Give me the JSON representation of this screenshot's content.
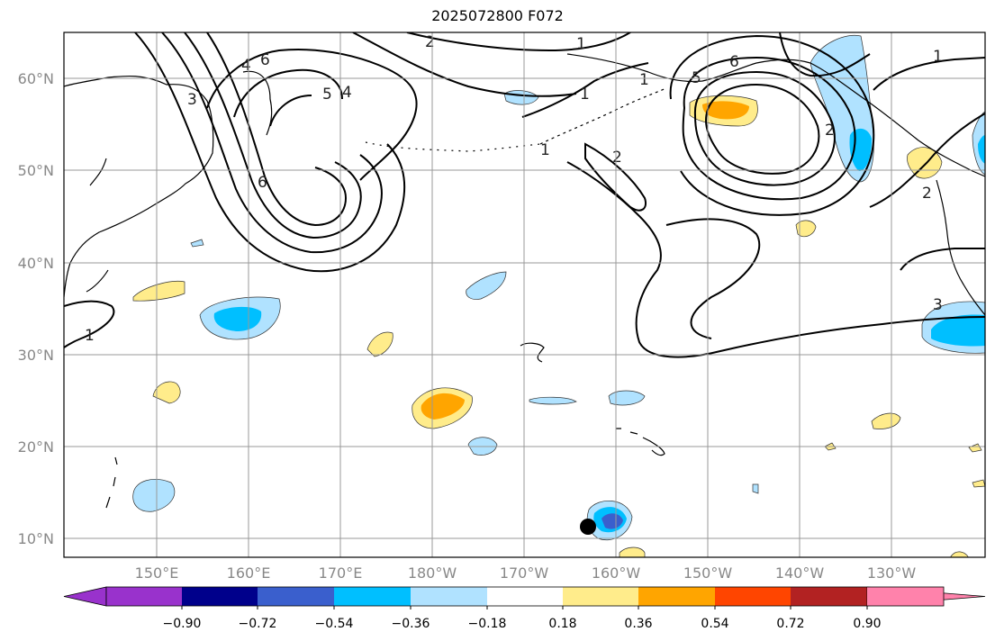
{
  "title": "2025072800 F072",
  "map": {
    "lat_labels": [
      "60°N",
      "50°N",
      "40°N",
      "30°N",
      "20°N",
      "10°N"
    ],
    "lon_labels": [
      "150°E",
      "160°E",
      "170°E",
      "180°W",
      "170°W",
      "160°W",
      "150°W",
      "140°W",
      "130°W"
    ],
    "gridlines": true,
    "marker": {
      "name": "storm-center-marker",
      "lat": 11.5,
      "lon": -163.5
    }
  },
  "contour_labels": [
    "6",
    "4",
    "5",
    "4",
    "3",
    "6",
    "1",
    "2",
    "1",
    "1",
    "2",
    "6",
    "5",
    "1",
    "2",
    "1",
    "3",
    "2",
    "1"
  ],
  "colorbar": {
    "ticks": [
      "−0.90",
      "−0.72",
      "−0.54",
      "−0.36",
      "−0.18",
      "0.18",
      "0.36",
      "0.54",
      "0.72",
      "0.90"
    ],
    "colors": [
      "#9932CC",
      "#00008B",
      "#3A5FCD",
      "#00BFFF",
      "#B0E2FF",
      "#FFFFFF",
      "#FFEC8B",
      "#FFA500",
      "#FF4500",
      "#B22222",
      "#FF82AB"
    ]
  }
}
